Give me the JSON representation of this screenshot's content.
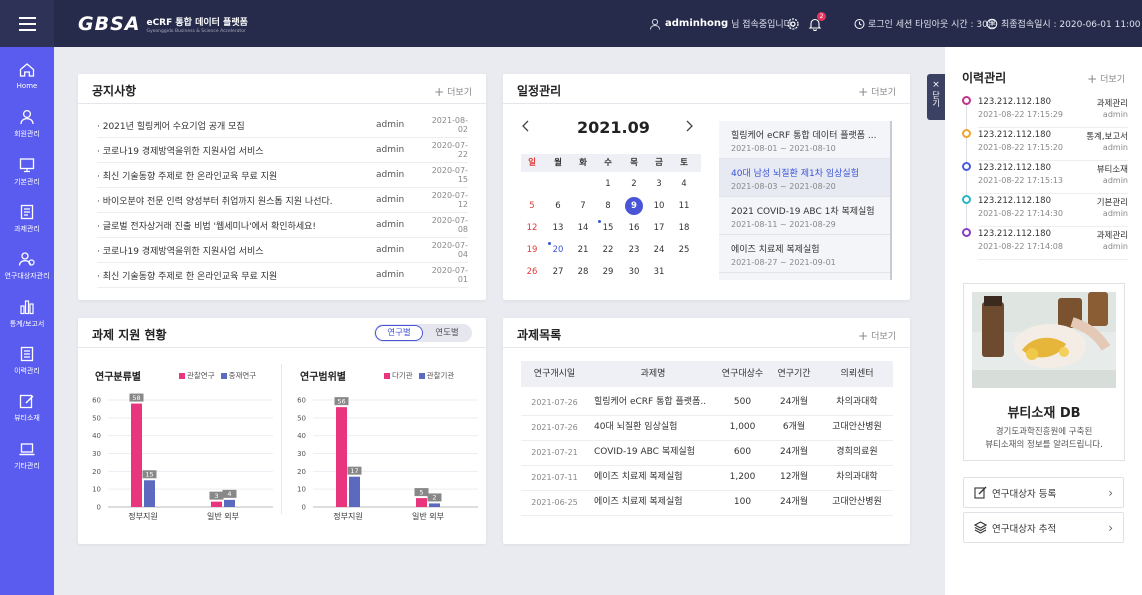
{
  "header": {
    "logo_mark": "GBSA",
    "logo_title": "eCRF 통합 데이터 플랫폼",
    "logo_subtitle": "Gyeonggido Business & Science Accelerator",
    "user_name": "adminhong",
    "user_suffix": "님 접속중입니다.",
    "notification_count": "2",
    "session_label": "로그인 세션 타임아웃 시간 : 30분",
    "last_login": "최종접속일시 : 2020-06-01 11:00"
  },
  "sidebar": {
    "items": [
      {
        "label": "Home",
        "icon": "home-icon"
      },
      {
        "label": "회원관리",
        "icon": "user-icon"
      },
      {
        "label": "기본관리",
        "icon": "monitor-icon"
      },
      {
        "label": "과제관리",
        "icon": "document-icon"
      },
      {
        "label": "연구대상자관리",
        "icon": "users-icon"
      },
      {
        "label": "통계/보고서",
        "icon": "bar-chart-icon"
      },
      {
        "label": "이력관리",
        "icon": "history-icon"
      },
      {
        "label": "뷰티소재",
        "icon": "edit-icon"
      },
      {
        "label": "기타관리",
        "icon": "laptop-icon"
      }
    ]
  },
  "notice": {
    "title": "공지사항",
    "more": "더보기",
    "rows": [
      {
        "title": "· 2021년 힐링케어 수요기업 공개 모집",
        "author": "admin",
        "date": "2021-08-02"
      },
      {
        "title": "· 코로나19 경제방역을위한 지원사업 서비스",
        "author": "admin",
        "date": "2020-07-22"
      },
      {
        "title": "· 최신 기술동향 주제로 한 온라인교육 무료 지원",
        "author": "admin",
        "date": "2020-07-15"
      },
      {
        "title": "· 바이오분야 전문 인력 양성부터 취업까지 원스톱 지원 나선다.",
        "author": "admin",
        "date": "2020-07-12"
      },
      {
        "title": "· 글로벌 전자상거래 진출 비법 '웹세미나'에서 확인하세요!",
        "author": "admin",
        "date": "2020-07-08"
      },
      {
        "title": "· 코로나19 경제방역을위한 지원사업 서비스",
        "author": "admin",
        "date": "2020-07-04"
      },
      {
        "title": "· 최신 기술동향 주제로 한 온라인교육 무료 지원",
        "author": "admin",
        "date": "2020-07-01"
      }
    ]
  },
  "schedule": {
    "title": "일정관리",
    "more": "더보기",
    "month": "2021.09",
    "weekdays": [
      "일",
      "월",
      "화",
      "수",
      "목",
      "금",
      "토"
    ],
    "weeks": [
      [
        "",
        "",
        "",
        "1",
        "2",
        "3",
        "4"
      ],
      [
        "5",
        "6",
        "7",
        "8",
        "9",
        "10",
        "11"
      ],
      [
        "12",
        "13",
        "14",
        "15",
        "16",
        "17",
        "18"
      ],
      [
        "19",
        "20",
        "21",
        "22",
        "23",
        "24",
        "25"
      ],
      [
        "26",
        "27",
        "28",
        "29",
        "30",
        "31",
        ""
      ]
    ],
    "selected_day": "9",
    "event_days": [
      "15",
      "20"
    ],
    "events": [
      {
        "title": "힐링케어 eCRF 통합 데이터 플랫폼 ...",
        "range": "2021-08-01 ~ 2021-08-10"
      },
      {
        "title": "40대 남성 뇌질환 제1차 임상실험",
        "range": "2021-08-03 ~ 2021-08-20"
      },
      {
        "title": "2021 COVID-19 ABC 1차 복제실험",
        "range": "2021-08-11 ~ 2021-08-29"
      },
      {
        "title": "에이즈 치료제 복제실험",
        "range": "2021-08-27 ~ 2021-09-01"
      }
    ]
  },
  "support": {
    "title": "과제 지원 현황",
    "toggle_on": "연구별",
    "toggle_off": "연도별",
    "colors": {
      "pink": "#e8357e",
      "blue": "#5b6abf"
    }
  },
  "chart_data": [
    {
      "type": "bar",
      "title": "연구분류별",
      "categories": [
        "정부지원",
        "일반 외부"
      ],
      "series": [
        {
          "name": "관찰연구",
          "values": [
            58,
            3
          ]
        },
        {
          "name": "중재연구",
          "values": [
            15,
            4
          ]
        }
      ],
      "ylim": [
        0,
        60
      ],
      "yticks": [
        "0",
        "10",
        "20",
        "30",
        "40",
        "50",
        "60"
      ],
      "legend": "top-right",
      "grid": true
    },
    {
      "type": "bar",
      "title": "연구범위별",
      "categories": [
        "정부지원",
        "일반 외부"
      ],
      "series": [
        {
          "name": "다기관",
          "values": [
            56,
            5
          ]
        },
        {
          "name": "관찰기관",
          "values": [
            17,
            2
          ]
        }
      ],
      "ylim": [
        0,
        60
      ],
      "yticks": [
        "0",
        "10",
        "20",
        "30",
        "40",
        "50",
        "60"
      ],
      "legend": "top-right",
      "grid": true
    }
  ],
  "projects": {
    "title": "과제목록",
    "more": "더보기",
    "columns": [
      "연구개시일",
      "과제명",
      "연구대상수",
      "연구기간",
      "의뢰센터"
    ],
    "rows": [
      [
        "2021-07-26",
        "힐링케어 eCRF 통합 플랫폼..",
        "500",
        "24개월",
        "차의과대학"
      ],
      [
        "2021-07-26",
        "40대 뇌질환 임상실험",
        "1,000",
        "6개월",
        "고대안산병원"
      ],
      [
        "2021-07-21",
        "COVID-19 ABC 복제실험",
        "600",
        "24개월",
        "경희의료원"
      ],
      [
        "2021-07-11",
        "에이즈 치료제 복제실험",
        "1,200",
        "12개월",
        "차의과대학"
      ],
      [
        "2021-06-25",
        "에이즈 치료제 복제실험",
        "100",
        "24개월",
        "고대안산병원"
      ]
    ]
  },
  "history": {
    "close_label": "닫기",
    "title": "이력관리",
    "more": "더보기",
    "rows": [
      {
        "ip": "123.212.112.180",
        "time": "2021-08-22 17:15:29",
        "category": "과제관리",
        "user": "admin",
        "color": "#c2338c"
      },
      {
        "ip": "123.212.112.180",
        "time": "2021-08-22 17:15:20",
        "category": "통계,보고서",
        "user": "admin",
        "color": "#f0a32e"
      },
      {
        "ip": "123.212.112.180",
        "time": "2021-08-22 17:15:13",
        "category": "뷰티소재",
        "user": "admin",
        "color": "#4a5be0"
      },
      {
        "ip": "123.212.112.180",
        "time": "2021-08-22 17:14:30",
        "category": "기본관리",
        "user": "admin",
        "color": "#2ab3c6"
      },
      {
        "ip": "123.212.112.180",
        "time": "2021-08-22 17:14:08",
        "category": "과제관리",
        "user": "admin",
        "color": "#8a3cc2"
      }
    ]
  },
  "beauty": {
    "title": "뷰티소재 DB",
    "desc1": "경기도과학진흥원에 구축된",
    "desc2": "뷰티소재의 정보를 알려드립니다."
  },
  "actions": {
    "register": "연구대상자 등록",
    "track": "연구대상자 추적"
  }
}
